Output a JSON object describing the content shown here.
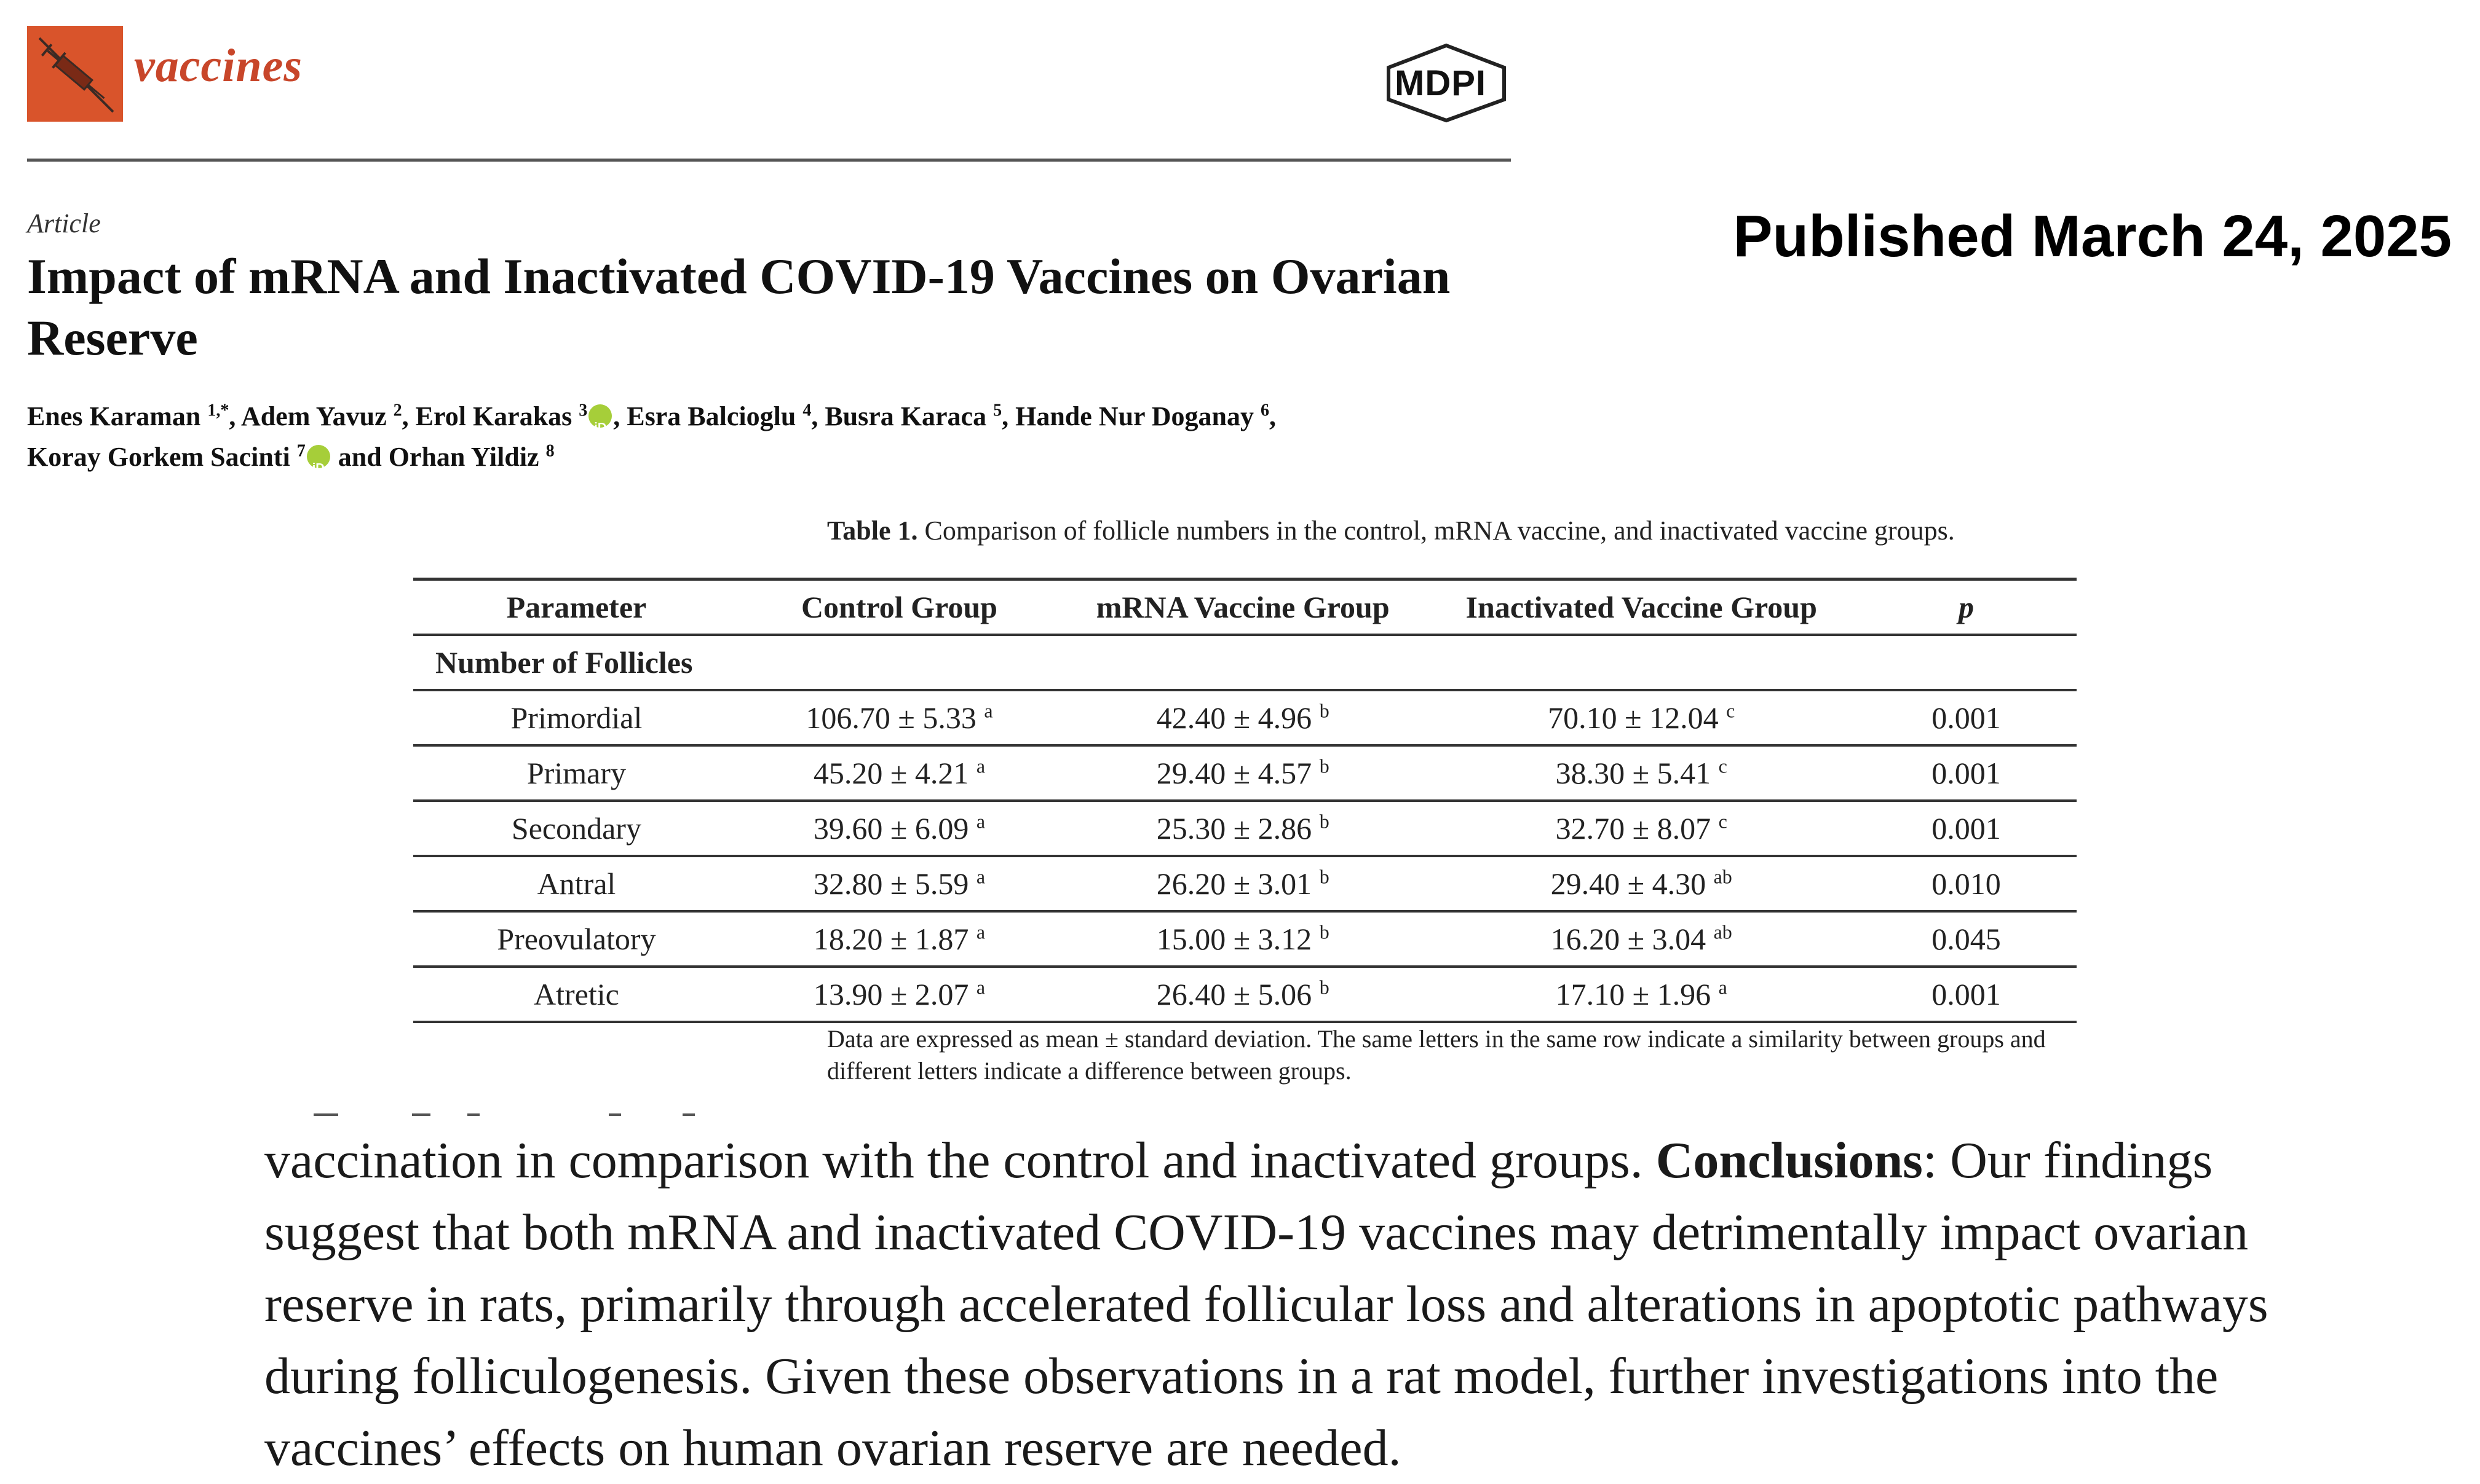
{
  "journal": {
    "name": "vaccines",
    "publisher": "MDPI",
    "brand_color": "#d9542b"
  },
  "published_banner": "Published March 24, 2025",
  "article": {
    "type": "Article",
    "title": "Impact of mRNA and Inactivated COVID-19 Vaccines on Ovarian Reserve",
    "authors": [
      {
        "name": "Enes Karaman",
        "aff": "1,*",
        "orcid": false
      },
      {
        "name": "Adem Yavuz",
        "aff": "2",
        "orcid": false
      },
      {
        "name": "Erol Karakas",
        "aff": "3",
        "orcid": true
      },
      {
        "name": "Esra Balcioglu",
        "aff": "4",
        "orcid": false
      },
      {
        "name": "Busra Karaca",
        "aff": "5",
        "orcid": false
      },
      {
        "name": "Hande Nur Doganay",
        "aff": "6",
        "orcid": false
      },
      {
        "name": "Koray Gorkem Sacinti",
        "aff": "7",
        "orcid": true
      },
      {
        "name": "Orhan Yildiz",
        "aff": "8",
        "orcid": false
      }
    ],
    "authors_separator": ", ",
    "authors_last_joiner": " and "
  },
  "table": {
    "caption_label": "Table 1.",
    "caption_text": "Comparison of follicle numbers in the control, mRNA vaccine, and inactivated vaccine groups.",
    "headers": [
      "Parameter",
      "Control Group",
      "mRNA Vaccine Group",
      "Inactivated Vaccine Group",
      "p"
    ],
    "group_label": "Number of Follicles",
    "rows": [
      {
        "parameter": "Primordial",
        "control": "106.70 ± 5.33",
        "control_sup": "a",
        "mrna": "42.40 ± 4.96",
        "mrna_sup": "b",
        "inactivated": "70.10 ± 12.04",
        "inactivated_sup": "c",
        "p": "0.001"
      },
      {
        "parameter": "Primary",
        "control": "45.20 ± 4.21",
        "control_sup": "a",
        "mrna": "29.40 ± 4.57",
        "mrna_sup": "b",
        "inactivated": "38.30 ± 5.41",
        "inactivated_sup": "c",
        "p": "0.001"
      },
      {
        "parameter": "Secondary",
        "control": "39.60 ± 6.09",
        "control_sup": "a",
        "mrna": "25.30 ± 2.86",
        "mrna_sup": "b",
        "inactivated": "32.70 ± 8.07",
        "inactivated_sup": "c",
        "p": "0.001"
      },
      {
        "parameter": "Antral",
        "control": "32.80 ± 5.59",
        "control_sup": "a",
        "mrna": "26.20 ± 3.01",
        "mrna_sup": "b",
        "inactivated": "29.40 ± 4.30",
        "inactivated_sup": "ab",
        "p": "0.010"
      },
      {
        "parameter": "Preovulatory",
        "control": "18.20 ± 1.87",
        "control_sup": "a",
        "mrna": "15.00 ± 3.12",
        "mrna_sup": "b",
        "inactivated": "16.20 ± 3.04",
        "inactivated_sup": "ab",
        "p": "0.045"
      },
      {
        "parameter": "Atretic",
        "control": "13.90 ± 2.07",
        "control_sup": "a",
        "mrna": "26.40 ± 5.06",
        "mrna_sup": "b",
        "inactivated": "17.10 ± 1.96",
        "inactivated_sup": "a",
        "p": "0.001"
      }
    ],
    "note": "Data are expressed as mean ± standard deviation. The same letters in the same row indicate a similarity between groups and different letters indicate a difference between groups."
  },
  "abstract_excerpt": {
    "before_bold": "vaccination in comparison with the control and inactivated groups. ",
    "bold_label": "Conclusions",
    "after_bold": ": Our findings suggest that both mRNA and inactivated COVID-19 vaccines may detrimentally impact ovarian reserve in rats, primarily through accelerated follicular loss and alterations in apoptotic pathways during folliculogenesis. Given these observations in a rat model, further investigations into the vaccines’ effects on human ovarian reserve are needed."
  },
  "icons": {
    "journal_logo": "syringe-icon",
    "publisher_logo": "mdpi-logo",
    "orcid": "orcid-icon"
  }
}
